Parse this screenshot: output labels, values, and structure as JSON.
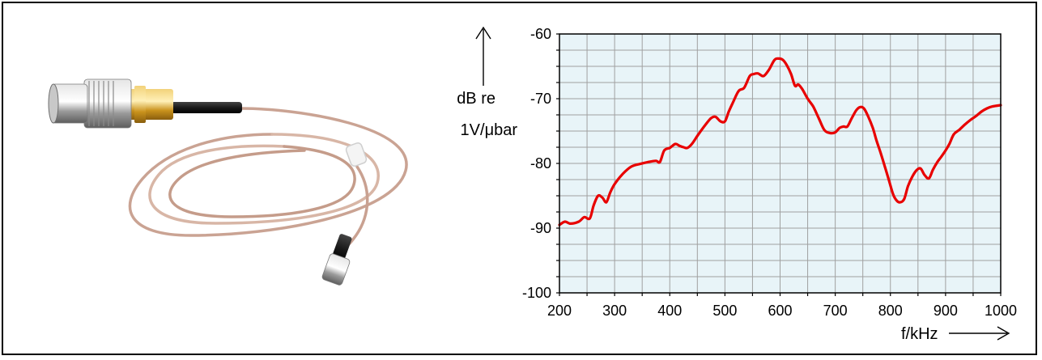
{
  "colors": {
    "plot_background": "#e8f4f8",
    "grid": "#a0a0a0",
    "curve": "#e80000",
    "connector_gold": "#d9a622",
    "connector_silver": "#b9b9b9",
    "cable": "#d9b8a8"
  },
  "photo": {
    "subject": "coaxial-cable-with-bnc-connector-and-hydrophone-tip"
  },
  "chart_data": {
    "type": "line",
    "title": "",
    "xlabel": "f/kHz",
    "ylabel_line1": "dB re",
    "ylabel_line2": "1V/μbar",
    "xlim": [
      200,
      1000
    ],
    "ylim": [
      -100,
      -60
    ],
    "x_ticks": [
      "200",
      "300",
      "400",
      "500",
      "600",
      "700",
      "800",
      "900",
      "1000"
    ],
    "y_ticks": [
      "-60",
      "-70",
      "-80",
      "-90",
      "-100"
    ],
    "grid": true,
    "legend": "none",
    "series": [
      {
        "name": "",
        "x": [
          200,
          210,
          220,
          235,
          245,
          255,
          262,
          270,
          278,
          285,
          292,
          300,
          315,
          330,
          345,
          360,
          375,
          382,
          390,
          400,
          410,
          418,
          425,
          432,
          440,
          452,
          465,
          475,
          483,
          492,
          500,
          507,
          515,
          525,
          535,
          545,
          552,
          560,
          570,
          580,
          590,
          598,
          605,
          612,
          620,
          627,
          633,
          640,
          650,
          660,
          670,
          680,
          690,
          700,
          708,
          715,
          722,
          730,
          738,
          745,
          752,
          760,
          768,
          775,
          782,
          790,
          798,
          805,
          812,
          818,
          825,
          832,
          840,
          848,
          855,
          862,
          870,
          877,
          885,
          892,
          900,
          907,
          915,
          925,
          935,
          945,
          955,
          965,
          975,
          985,
          1000
        ],
        "y": [
          -89.5,
          -89.0,
          -89.3,
          -89.0,
          -88.3,
          -88.5,
          -86.5,
          -85.0,
          -85.3,
          -86.0,
          -84.5,
          -83.2,
          -81.6,
          -80.5,
          -80.1,
          -79.8,
          -79.6,
          -79.8,
          -78.0,
          -77.6,
          -77.0,
          -77.3,
          -77.5,
          -77.6,
          -77.0,
          -75.5,
          -74.0,
          -73.0,
          -72.8,
          -73.5,
          -73.5,
          -72.0,
          -70.5,
          -68.8,
          -68.3,
          -66.5,
          -66.2,
          -66.1,
          -66.5,
          -65.5,
          -64.0,
          -63.8,
          -64.0,
          -64.8,
          -66.2,
          -68.0,
          -67.8,
          -68.5,
          -70.0,
          -71.2,
          -73.0,
          -74.8,
          -75.3,
          -75.2,
          -74.5,
          -74.3,
          -74.3,
          -73.0,
          -71.8,
          -71.3,
          -71.5,
          -72.8,
          -74.5,
          -76.5,
          -78.3,
          -80.5,
          -82.8,
          -84.8,
          -85.8,
          -86.0,
          -85.5,
          -83.5,
          -82.0,
          -81.0,
          -80.8,
          -81.8,
          -82.3,
          -81.0,
          -79.8,
          -79.0,
          -78.0,
          -77.0,
          -75.5,
          -74.8,
          -74.0,
          -73.3,
          -72.7,
          -72.0,
          -71.5,
          -71.2,
          -71.0
        ]
      }
    ]
  }
}
